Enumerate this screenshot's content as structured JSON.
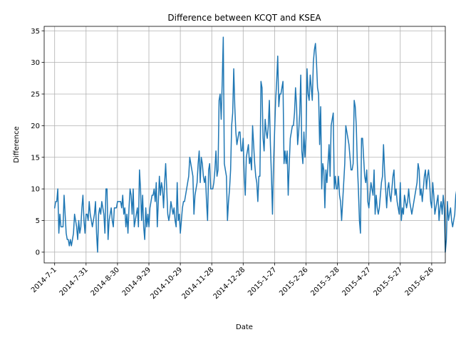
{
  "chart_data": {
    "type": "line",
    "title": "Difference between KCQT and KSEA",
    "xlabel": "Date",
    "ylabel": "Difference",
    "x_tick_labels": [
      "2014-7-1",
      "2014-7-31",
      "2014-8-30",
      "2014-9-29",
      "2014-10-29",
      "2014-11-28",
      "2014-12-28",
      "2015-1-27",
      "2015-2-26",
      "2015-3-28",
      "2015-4-27",
      "2015-5-27",
      "2015-6-26"
    ],
    "x_tick_dates": [
      "2014-07-01",
      "2014-07-31",
      "2014-08-30",
      "2014-09-29",
      "2014-10-29",
      "2014-11-28",
      "2014-12-28",
      "2015-01-27",
      "2015-02-26",
      "2015-03-28",
      "2015-04-27",
      "2015-05-27",
      "2015-06-26"
    ],
    "xlim": [
      "2014-06-21",
      "2015-07-09"
    ],
    "y_ticks": [
      0,
      5,
      10,
      15,
      20,
      25,
      30,
      35
    ],
    "ylim": [
      -1.7,
      35.7
    ],
    "grid": true,
    "line_color": "#1f77b4",
    "series": [
      {
        "start_date": "2014-07-01",
        "values": [
          7,
          8,
          8,
          10,
          3,
          6,
          4,
          4,
          4,
          9,
          6,
          3,
          2,
          2,
          1,
          2,
          1,
          2,
          3,
          6,
          5,
          4,
          2,
          5,
          3,
          4,
          7,
          9,
          5,
          3,
          6,
          6,
          5,
          8,
          6,
          5,
          4,
          5,
          6,
          8,
          3,
          0,
          6,
          7,
          6,
          8,
          7,
          6,
          3,
          10,
          10,
          2,
          5,
          6,
          7,
          5,
          4,
          7,
          7,
          7,
          8,
          8,
          8,
          8,
          7,
          9,
          6,
          7,
          4,
          6,
          3,
          7,
          10,
          9,
          6,
          10,
          4,
          5,
          6,
          7,
          4,
          13,
          10,
          5,
          9,
          4,
          2,
          7,
          4,
          6,
          4,
          7,
          8,
          9,
          9,
          10,
          8,
          11,
          4,
          8,
          12,
          9,
          11,
          10,
          7,
          11,
          14,
          10,
          6,
          5,
          6,
          8,
          7,
          6,
          7,
          5,
          4,
          11,
          5,
          6,
          3,
          5,
          7,
          8,
          8,
          9,
          10,
          11,
          12,
          15,
          14,
          13,
          12,
          6,
          9,
          10,
          11,
          14,
          16,
          11,
          15,
          14,
          12,
          11,
          12,
          8,
          5,
          13,
          14,
          10,
          10,
          10,
          11,
          13,
          16,
          12,
          13,
          24,
          25,
          21,
          27,
          34,
          14,
          13,
          12,
          5,
          8,
          10,
          13,
          20,
          22,
          29,
          23,
          19,
          17,
          18,
          19,
          19,
          16,
          16,
          18,
          12,
          9,
          15,
          16,
          17,
          14,
          15,
          13,
          20,
          17,
          14,
          12,
          11,
          8,
          12,
          12,
          27,
          26,
          18,
          16,
          21,
          19,
          18,
          20,
          24,
          17,
          12,
          6,
          14,
          19,
          24,
          27,
          31,
          23,
          25,
          25,
          26,
          27,
          14,
          16,
          14,
          16,
          9,
          14,
          18,
          19,
          20,
          20,
          22,
          26,
          23,
          17,
          19,
          22,
          28,
          16,
          14,
          19,
          15,
          18,
          29,
          25,
          24,
          28,
          26,
          24,
          30,
          32,
          33,
          30,
          26,
          25,
          17,
          23,
          10,
          14,
          13,
          7,
          13,
          11,
          14,
          17,
          12,
          20,
          21,
          22,
          10,
          12,
          10,
          10,
          12,
          9,
          8,
          5,
          8,
          11,
          14,
          20,
          19,
          18,
          17,
          15,
          13,
          13,
          14,
          24,
          23,
          20,
          14,
          10,
          5,
          3,
          18,
          18,
          15,
          12,
          11,
          13,
          8,
          7,
          9,
          11,
          10,
          9,
          13,
          6,
          9,
          7,
          6,
          7,
          9,
          11,
          12,
          17,
          13,
          10,
          7,
          10,
          11,
          9,
          8,
          10,
          12,
          13,
          9,
          10,
          8,
          7,
          6,
          11,
          5,
          7,
          6,
          9,
          8,
          7,
          8,
          10,
          8,
          7,
          6,
          7,
          8,
          9,
          10,
          11,
          14,
          13,
          9,
          10,
          8,
          10,
          12,
          13,
          10,
          12,
          13,
          11,
          8,
          7,
          11,
          9,
          6,
          7,
          8,
          9,
          5,
          7,
          8,
          6,
          9,
          7,
          0,
          2,
          8,
          5,
          6,
          7,
          5,
          4,
          5,
          6,
          9,
          10,
          9,
          11,
          8,
          10,
          12,
          12,
          10,
          7,
          8,
          7,
          6,
          9,
          5,
          6,
          4,
          3,
          2,
          8,
          9,
          6,
          5,
          5,
          7,
          6,
          5,
          4,
          5,
          5,
          6,
          8,
          9,
          5,
          4,
          3,
          2,
          7,
          7,
          6,
          5,
          6
        ]
      }
    ]
  }
}
